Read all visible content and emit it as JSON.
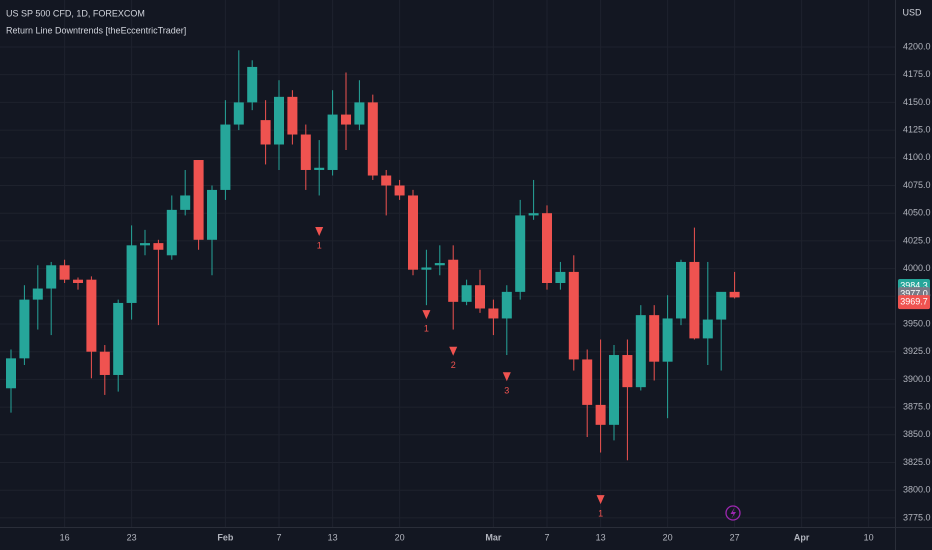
{
  "header": {
    "symbol": "US SP 500 CFD, 1D, FOREXCOM",
    "indicator": "Return Line Downtrends [theEccentricTrader]",
    "currency": "USD"
  },
  "chart_data": {
    "type": "candlestick",
    "categories": [
      null,
      null,
      null,
      null,
      "16",
      null,
      null,
      null,
      null,
      "23",
      null,
      null,
      null,
      null,
      null,
      null,
      "Feb",
      null,
      null,
      null,
      "7",
      null,
      null,
      null,
      "13",
      null,
      null,
      null,
      null,
      "20",
      null,
      null,
      null,
      null,
      null,
      null,
      "Mar",
      null,
      null,
      null,
      "7",
      null,
      null,
      null,
      "13",
      null,
      null,
      null,
      null,
      "20",
      null,
      null,
      null,
      null,
      "27",
      null,
      null,
      null,
      null,
      "Apr",
      null,
      null,
      null,
      null,
      "10"
    ],
    "open": [
      3892,
      3919,
      3972,
      3982,
      4003,
      3990,
      3990,
      3925,
      3904,
      3969,
      4021,
      4023,
      4012,
      4053,
      4098,
      4026,
      4071,
      4130,
      4150,
      4134,
      4112,
      4155,
      4121,
      4089,
      4089,
      4139,
      4130,
      4150,
      4084,
      4075,
      4066,
      3999,
      4003,
      4008,
      3970,
      3985,
      3964,
      3955,
      3979,
      4048,
      4050,
      3987,
      3997,
      3918,
      3877,
      3859,
      3922,
      3893,
      3958,
      3916,
      3955,
      4006,
      3937,
      3954,
      3979,
      null,
      null,
      null,
      null,
      null,
      null,
      null,
      null,
      null,
      null
    ],
    "high": [
      3927,
      3985,
      4003,
      4006,
      4008,
      3992,
      3993,
      3931,
      3972,
      4039,
      4035,
      4026,
      4066,
      4089,
      4098,
      4075,
      4152,
      4197,
      4188,
      4152,
      4170,
      4161,
      4130,
      4116,
      4161,
      4177,
      4170,
      4157,
      4089,
      4080,
      4071,
      4017,
      4021,
      4021,
      3990,
      3999,
      3972,
      3985,
      4062,
      4080,
      4057,
      4006,
      4012,
      3927,
      3936,
      3931,
      3936,
      3967,
      3967,
      3976,
      4008,
      4037,
      4006,
      3976,
      3997,
      null,
      null,
      null,
      null,
      null,
      null,
      null,
      null,
      null,
      null
    ],
    "low": [
      3870,
      3913,
      3945,
      3940,
      3987,
      3981,
      3901,
      3886,
      3889,
      3954,
      4012,
      3949,
      4008,
      4048,
      4017,
      3994,
      4062,
      4125,
      4143,
      4094,
      4089,
      4112,
      4071,
      4066,
      4084,
      4107,
      4125,
      4080,
      4048,
      4062,
      3994,
      3967,
      3994,
      3945,
      3967,
      3960,
      3940,
      3922,
      3972,
      4044,
      3981,
      3981,
      3908,
      3848,
      3834,
      3845,
      3827,
      3890,
      3899,
      3865,
      3949,
      3936,
      3913,
      3908,
      3973,
      null,
      null,
      null,
      null,
      null,
      null,
      null,
      null,
      null,
      null
    ],
    "close": [
      3919,
      3972,
      3982,
      4003,
      3990,
      3987,
      3925,
      3904,
      3969,
      4021,
      4023,
      4017,
      4053,
      4066,
      4026,
      4071,
      4130,
      4150,
      4182,
      4112,
      4155,
      4121,
      4089,
      4091,
      4139,
      4130,
      4150,
      4084,
      4075,
      4066,
      3999,
      4001,
      4005,
      3970,
      3985,
      3964,
      3955,
      3979,
      4048,
      4050,
      3987,
      3997,
      3918,
      3877,
      3859,
      3922,
      3893,
      3958,
      3916,
      3955,
      4006,
      3937,
      3954,
      3979,
      3974,
      null,
      null,
      null,
      null,
      null,
      null,
      null,
      null,
      null,
      null
    ],
    "up_color": "#26a69a",
    "down_color": "#ef5350",
    "ylim": [
      3766.8,
      4242.4
    ],
    "yticks": [
      {
        "value": 3775,
        "label": "3775.0"
      },
      {
        "value": 3800,
        "label": "3800.0"
      },
      {
        "value": 3825,
        "label": "3825.0"
      },
      {
        "value": 3850,
        "label": "3850.0"
      },
      {
        "value": 3875,
        "label": "3875.0"
      },
      {
        "value": 3900,
        "label": "3900.0"
      },
      {
        "value": 3925,
        "label": "3925.0"
      },
      {
        "value": 3950,
        "label": "3950.0"
      },
      {
        "value": 3975,
        "label": "3975.0"
      },
      {
        "value": 4000,
        "label": "4000.0"
      },
      {
        "value": 4025,
        "label": "4025.0"
      },
      {
        "value": 4050,
        "label": "4050.0"
      },
      {
        "value": 4075,
        "label": "4075.0"
      },
      {
        "value": 4100,
        "label": "4100.0"
      },
      {
        "value": 4125,
        "label": "4125.0"
      },
      {
        "value": 4150,
        "label": "4150.0"
      },
      {
        "value": 4175,
        "label": "4175.0"
      },
      {
        "value": 4200,
        "label": "4200.0"
      }
    ],
    "grid": true,
    "annotations": [
      {
        "label": "1",
        "index": 23,
        "price": 4033
      },
      {
        "label": "1",
        "index": 31,
        "price": 3958
      },
      {
        "label": "2",
        "index": 33,
        "price": 3925
      },
      {
        "label": "3",
        "index": 37,
        "price": 3902
      },
      {
        "label": "1",
        "index": 44,
        "price": 3791
      }
    ],
    "annotation_color": "#ef5350",
    "price_labels": [
      {
        "value": 3984.3,
        "label": "3984.3",
        "color": "#26a69a"
      },
      {
        "value": 3977.0,
        "label": "3977.0",
        "color": "#787b86"
      },
      {
        "value": 3969.7,
        "label": "3969.7",
        "color": "#ef5350"
      }
    ]
  }
}
